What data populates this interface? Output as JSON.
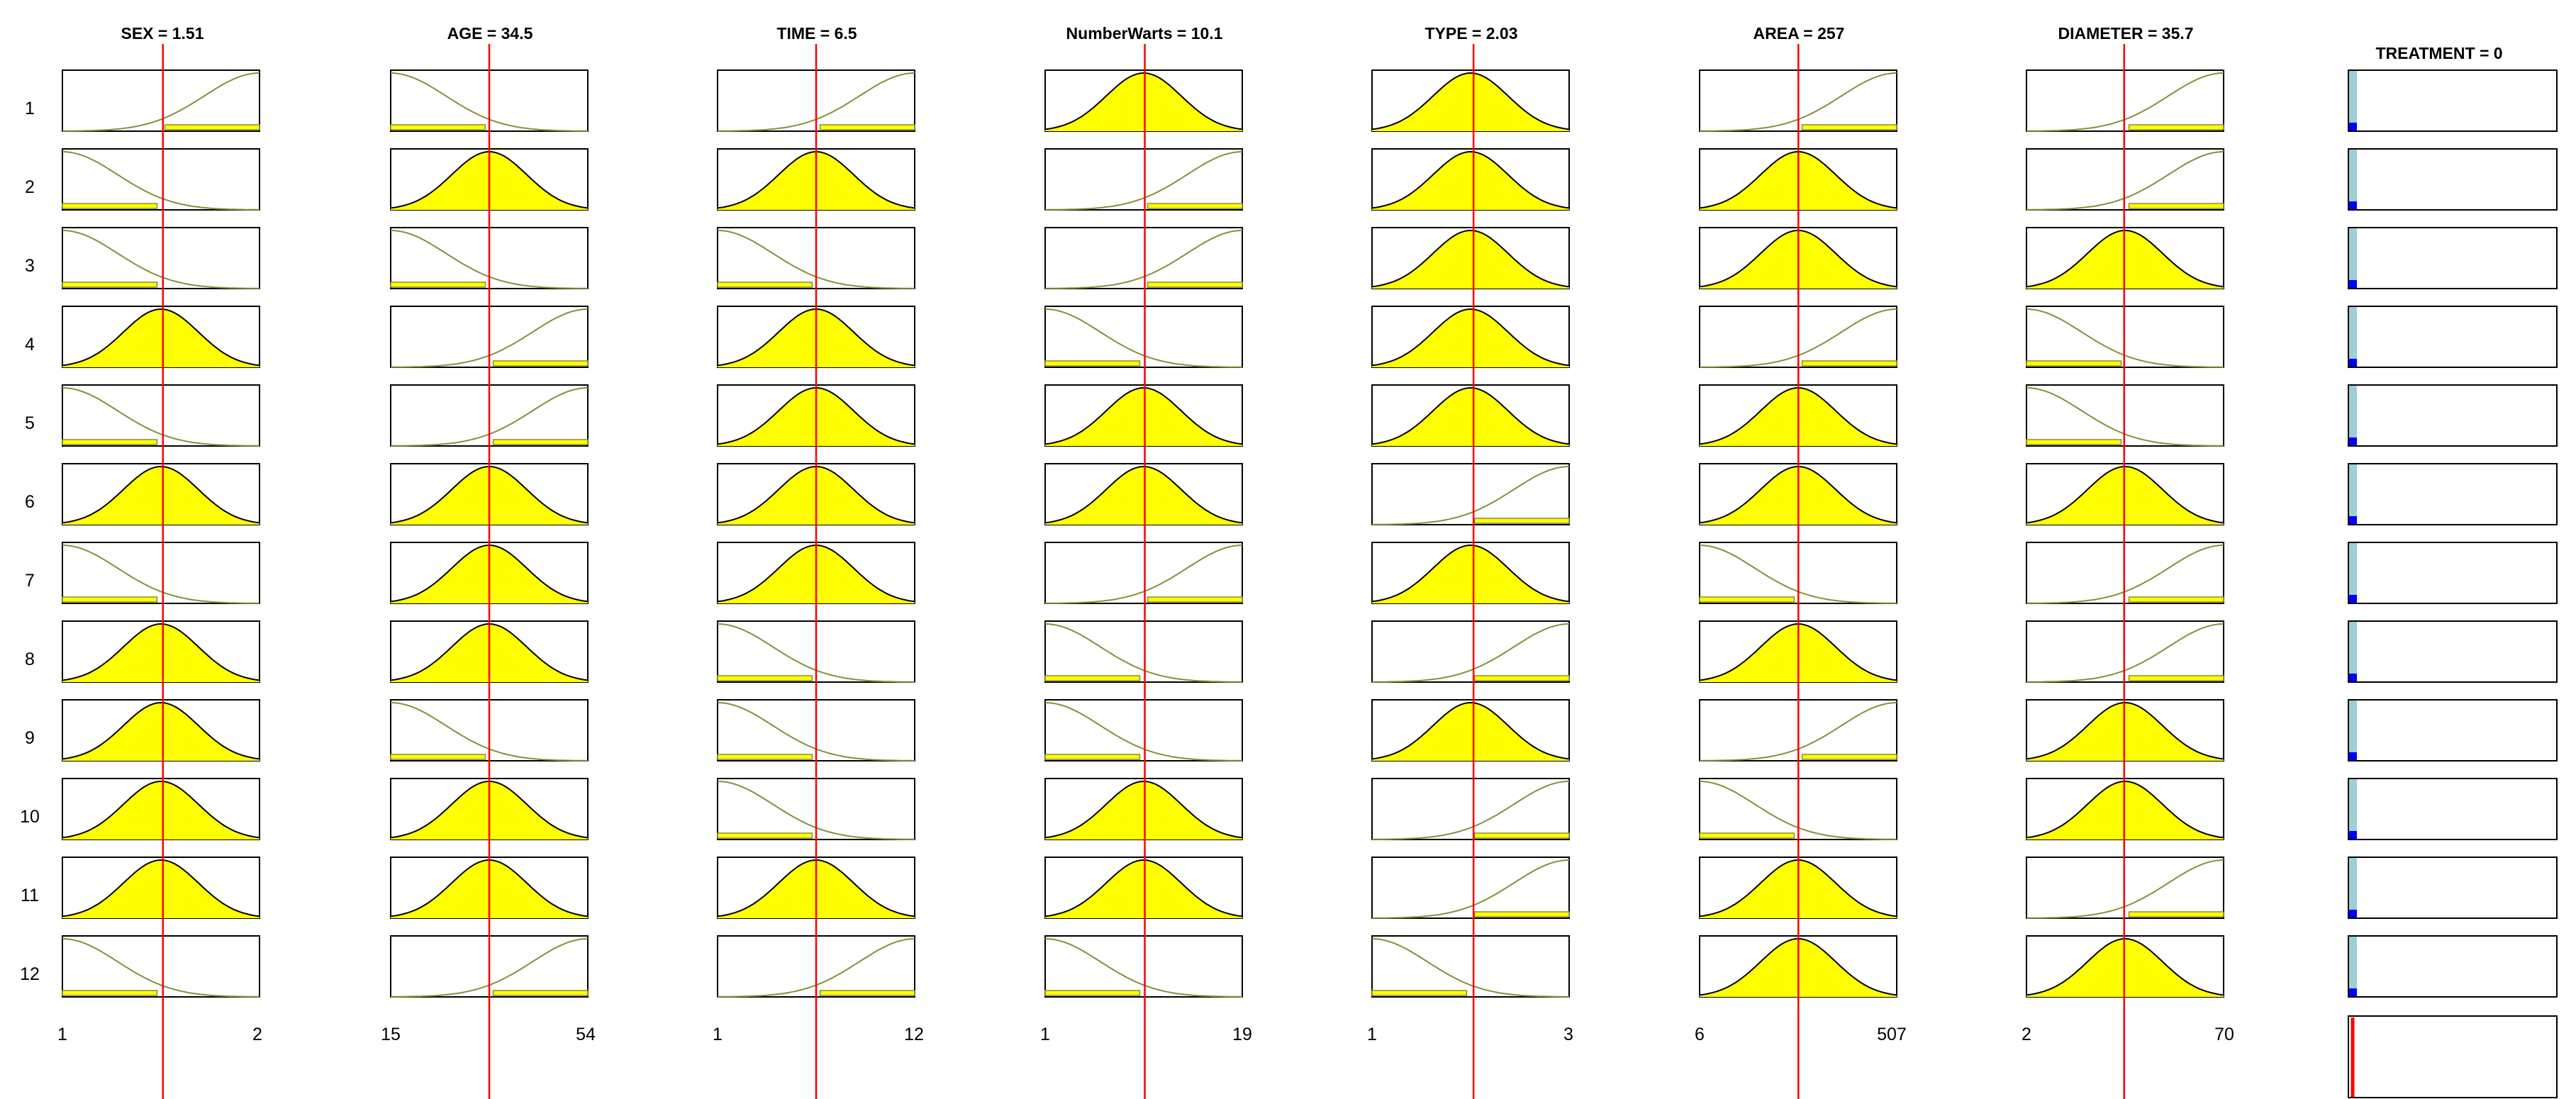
{
  "inputs": [
    {
      "name": "SEX",
      "value": "1.51",
      "title": "SEX = 1.51",
      "range_label_min": "1",
      "range_label_max": "2",
      "min": 1,
      "max": 2,
      "current": 1.51
    },
    {
      "name": "AGE",
      "value": "34.5",
      "title": "AGE = 34.5",
      "range_label_min": "15",
      "range_label_max": "54",
      "min": 15,
      "max": 54,
      "current": 34.5
    },
    {
      "name": "TIME",
      "value": "6.5",
      "title": "TIME = 6.5",
      "range_label_min": "1",
      "range_label_max": "12",
      "min": 1,
      "max": 12,
      "current": 6.5
    },
    {
      "name": "NumberWarts",
      "value": "10.1",
      "title": "NumberWarts = 10.1",
      "range_label_min": "1",
      "range_label_max": "19",
      "min": 1,
      "max": 19,
      "current": 10.1
    },
    {
      "name": "TYPE",
      "value": "2.03",
      "title": "TYPE = 2.03",
      "range_label_min": "1",
      "range_label_max": "3",
      "min": 1,
      "max": 3,
      "current": 2.03
    },
    {
      "name": "AREA",
      "value": "257",
      "title": "AREA = 257",
      "range_label_min": "6",
      "range_label_max": "507",
      "min": 6,
      "max": 507,
      "current": 257
    },
    {
      "name": "DIAMETER",
      "value": "35.7",
      "title": "DIAMETER = 35.7",
      "range_label_min": "2",
      "range_label_max": "70",
      "min": 2,
      "max": 70,
      "current": 35.7
    }
  ],
  "output": {
    "name": "TREATMENT",
    "value": "0",
    "title": "TREATMENT = 0"
  },
  "rules": [
    "1",
    "2",
    "3",
    "4",
    "5",
    "6",
    "7",
    "8",
    "9",
    "10",
    "11",
    "12"
  ],
  "membership_grid": [
    [
      "high",
      "low",
      "high",
      "mid",
      "mid",
      "high",
      "high"
    ],
    [
      "low",
      "mid",
      "mid",
      "high",
      "mid",
      "mid",
      "high"
    ],
    [
      "low",
      "low",
      "low",
      "high",
      "mid",
      "mid",
      "mid"
    ],
    [
      "mid",
      "high",
      "mid",
      "low",
      "mid",
      "high",
      "low"
    ],
    [
      "low",
      "high",
      "mid",
      "mid",
      "mid",
      "mid",
      "low"
    ],
    [
      "mid",
      "mid",
      "mid",
      "mid",
      "high",
      "mid",
      "mid"
    ],
    [
      "low",
      "mid",
      "mid",
      "high",
      "mid",
      "low",
      "high"
    ],
    [
      "mid",
      "mid",
      "low",
      "low",
      "high",
      "mid",
      "high"
    ],
    [
      "mid",
      "low",
      "low",
      "low",
      "mid",
      "high",
      "mid"
    ],
    [
      "mid",
      "mid",
      "low",
      "mid",
      "high",
      "low",
      "mid"
    ],
    [
      "mid",
      "mid",
      "mid",
      "mid",
      "high",
      "mid",
      "high"
    ],
    [
      "low",
      "high",
      "high",
      "low",
      "low",
      "mid",
      "mid"
    ]
  ],
  "colors": {
    "mf_fill": "#ffff00",
    "mf_curve": "#000000",
    "mf_inactive": "#8c8c3a",
    "value_line": "#ff0000",
    "output_bar": "#9fcfd6",
    "output_marker": "#0000ff",
    "result_line": "#ff0000",
    "frame": "#000000"
  }
}
